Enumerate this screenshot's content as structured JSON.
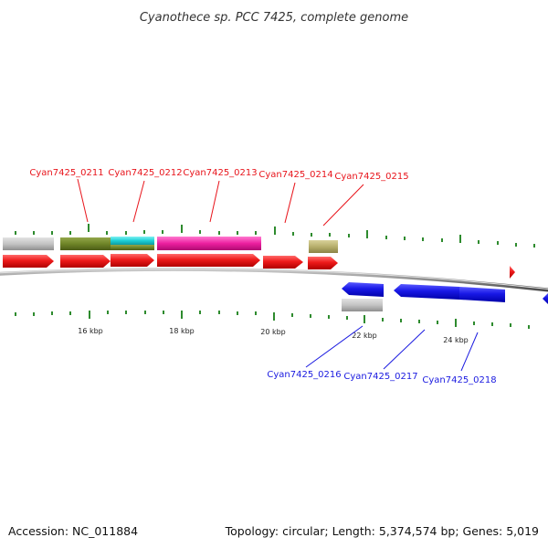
{
  "title": "Cyanothece sp. PCC 7425, complete genome",
  "footer": {
    "accession": "Accession: NC_011884",
    "summary": "Topology: circular; Length: 5,374,574 bp; Genes: 5,019"
  },
  "scale_labels": [
    "16 kbp",
    "18 kbp",
    "20 kbp",
    "22 kbp",
    "24 kbp"
  ],
  "colors": {
    "forward_gene": "#e8141b",
    "reverse_gene": "#1a1ae0",
    "tick": "#2e8b2e",
    "backbone": "#8c8c8c"
  },
  "forward_labels": [
    "Cyan7425_0211",
    "Cyan7425_0212",
    "Cyan7425_0213",
    "Cyan7425_0214",
    "Cyan7425_0215"
  ],
  "reverse_labels": [
    "Cyan7425_0216",
    "Cyan7425_0217",
    "Cyan7425_0218"
  ]
}
